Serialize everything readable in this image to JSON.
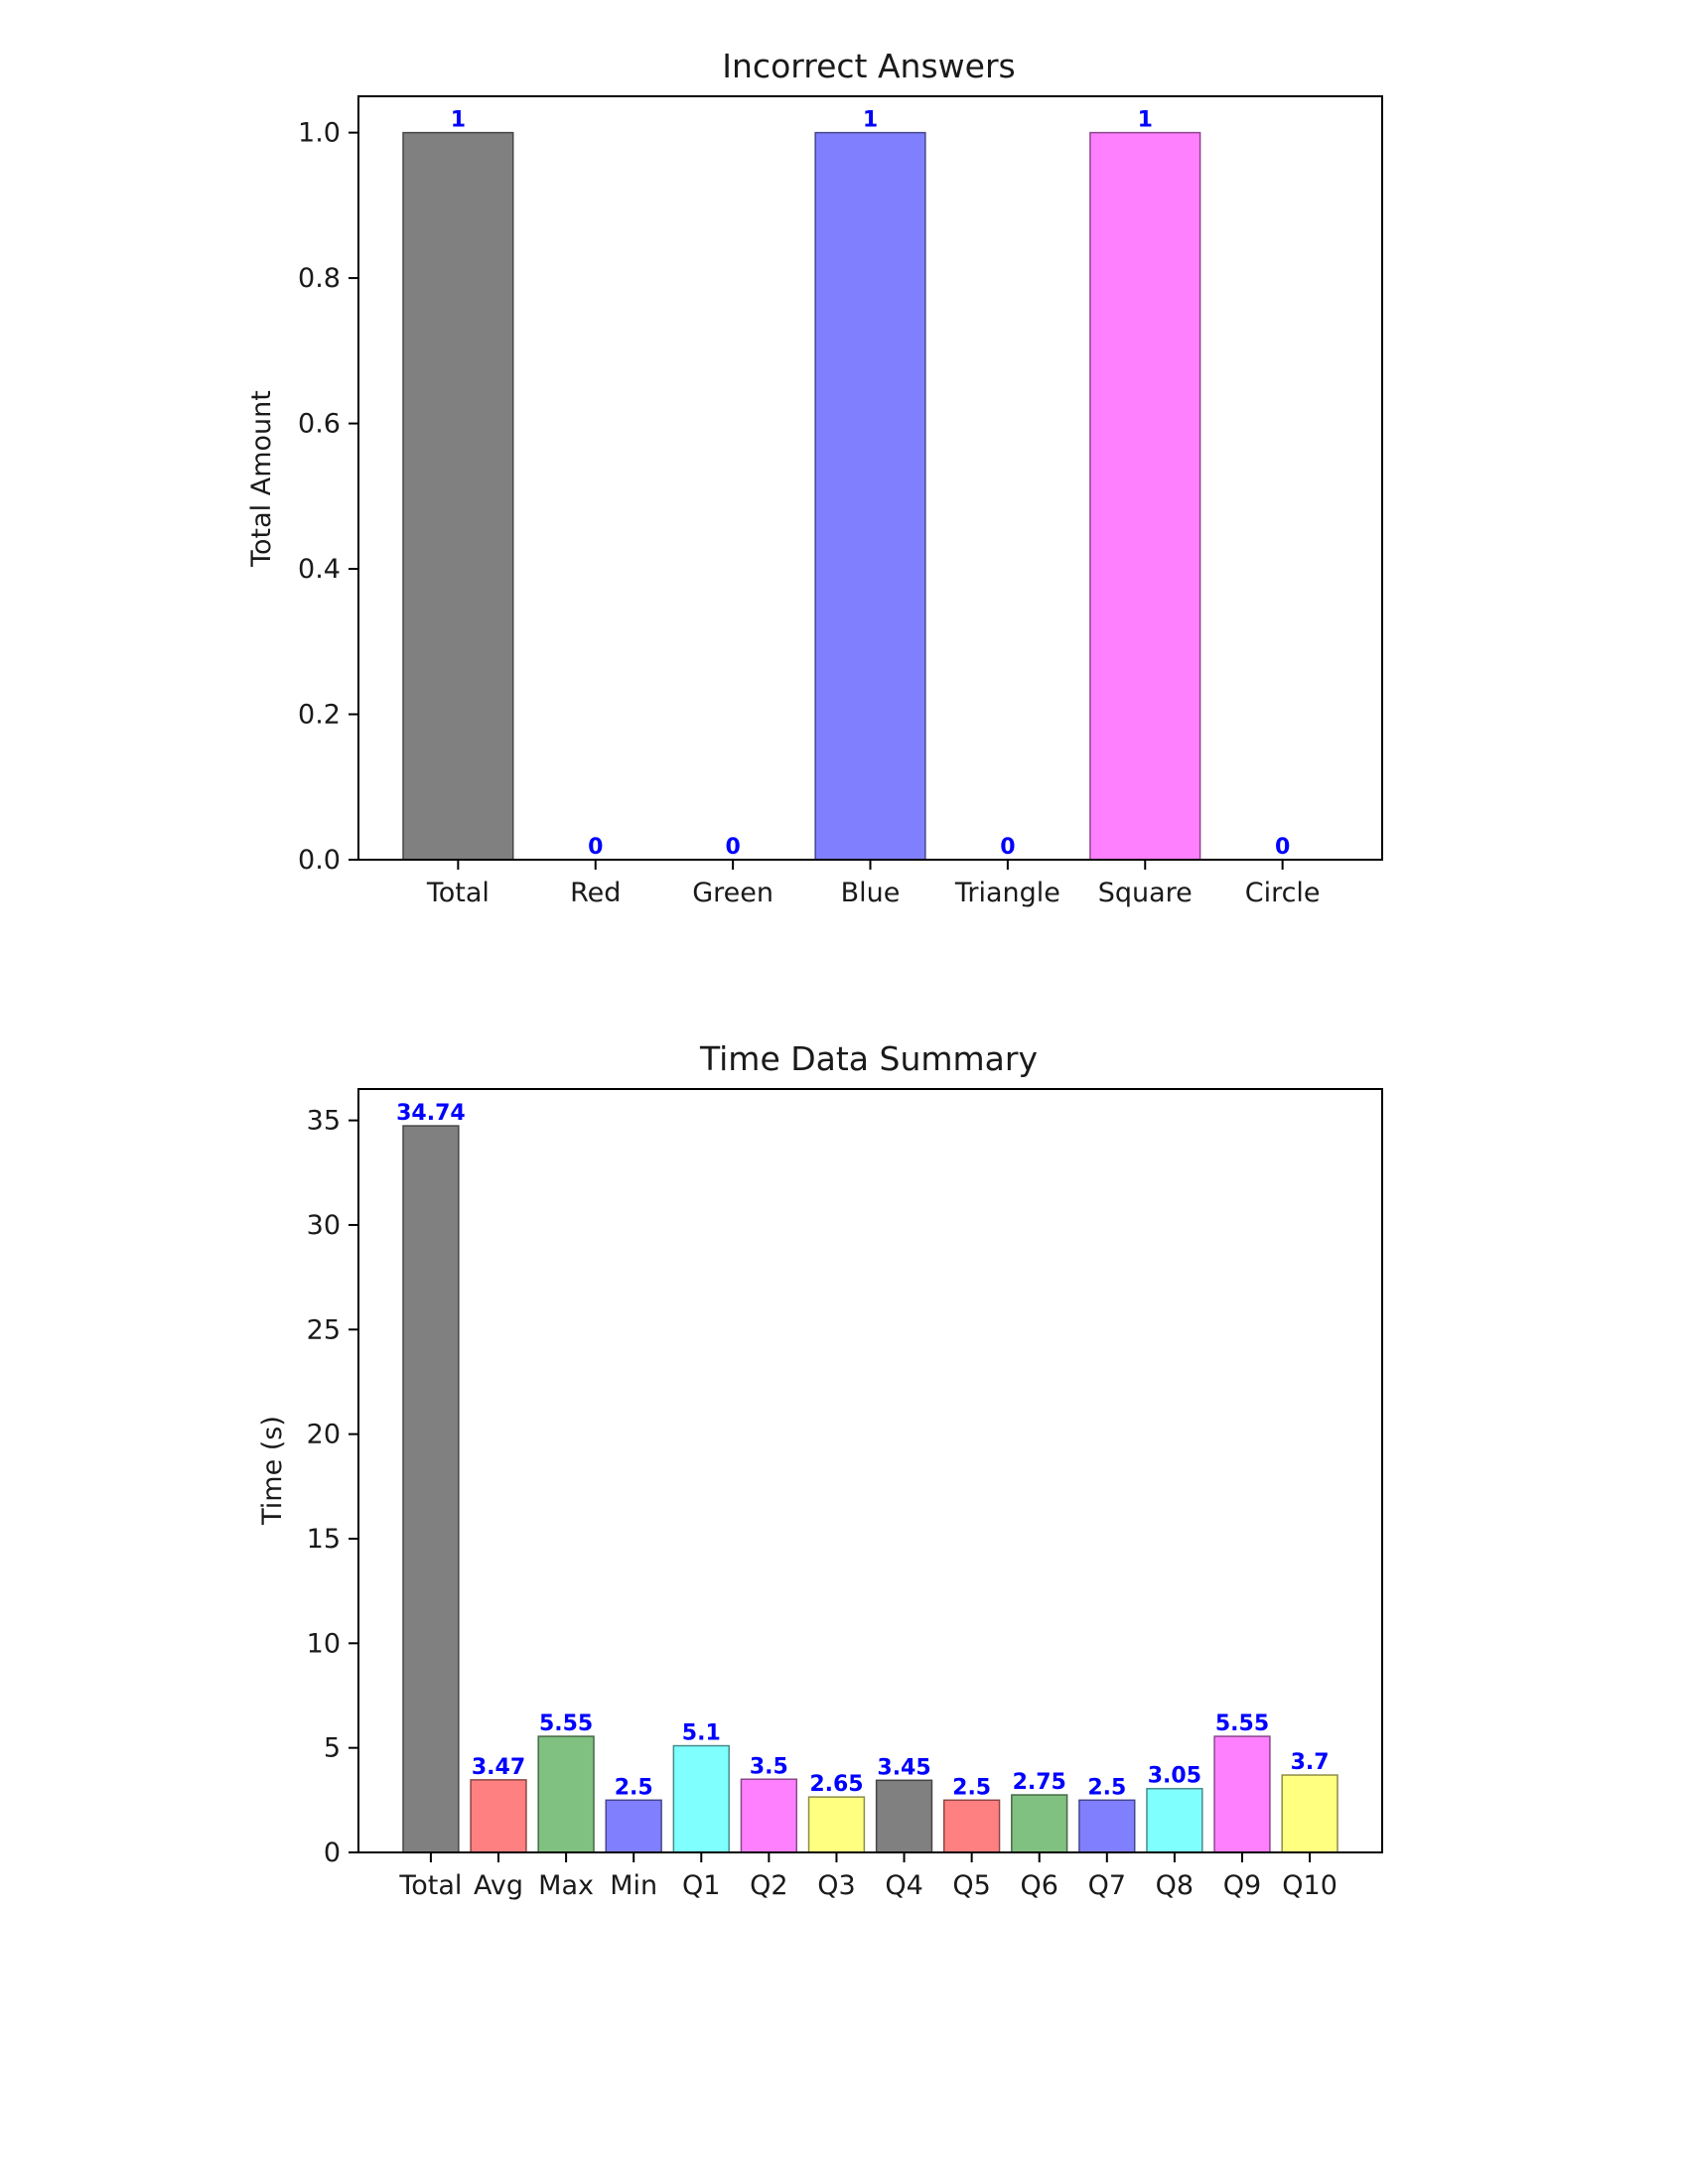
{
  "chart_data": [
    {
      "type": "bar",
      "title": "Incorrect Answers",
      "xlabel": "",
      "ylabel": "Total Amount",
      "categories": [
        "Total",
        "Red",
        "Green",
        "Blue",
        "Triangle",
        "Square",
        "Circle"
      ],
      "values": [
        1,
        0,
        0,
        1,
        0,
        1,
        0
      ],
      "value_labels": [
        "1",
        "0",
        "0",
        "1",
        "0",
        "1",
        "0"
      ],
      "colors": [
        "#808080",
        "#ff8080",
        "#80c080",
        "#8080ff",
        "#80ffff",
        "#ff80ff",
        "#ffff80"
      ],
      "ylim": [
        0,
        1.05
      ],
      "yticks": [
        0.0,
        0.2,
        0.4,
        0.6,
        0.8,
        1.0
      ],
      "ytick_labels": [
        "0.0",
        "0.2",
        "0.4",
        "0.6",
        "0.8",
        "1.0"
      ],
      "data_label_color": "#0000ff",
      "grid": false,
      "legend": "none"
    },
    {
      "type": "bar",
      "title": "Time Data Summary",
      "xlabel": "",
      "ylabel": "Time (s)",
      "categories": [
        "Total",
        "Avg",
        "Max",
        "Min",
        "Q1",
        "Q2",
        "Q3",
        "Q4",
        "Q5",
        "Q6",
        "Q7",
        "Q8",
        "Q9",
        "Q10"
      ],
      "values": [
        34.74,
        3.47,
        5.55,
        2.5,
        5.1,
        3.5,
        2.65,
        3.45,
        2.5,
        2.75,
        2.5,
        3.05,
        5.55,
        3.7
      ],
      "value_labels": [
        "34.74",
        "3.47",
        "5.55",
        "2.5",
        "5.1",
        "3.5",
        "2.65",
        "3.45",
        "2.5",
        "2.75",
        "2.5",
        "3.05",
        "5.55",
        "3.7"
      ],
      "colors": [
        "#808080",
        "#ff8080",
        "#80c080",
        "#8080ff",
        "#80ffff",
        "#ff80ff",
        "#ffff80",
        "#808080",
        "#ff8080",
        "#80c080",
        "#8080ff",
        "#80ffff",
        "#ff80ff",
        "#ffff80"
      ],
      "ylim": [
        0,
        36.5
      ],
      "yticks": [
        0,
        5,
        10,
        15,
        20,
        25,
        30,
        35
      ],
      "ytick_labels": [
        "0",
        "5",
        "10",
        "15",
        "20",
        "25",
        "30",
        "35"
      ],
      "data_label_color": "#0000ff",
      "grid": false,
      "legend": "none"
    }
  ]
}
